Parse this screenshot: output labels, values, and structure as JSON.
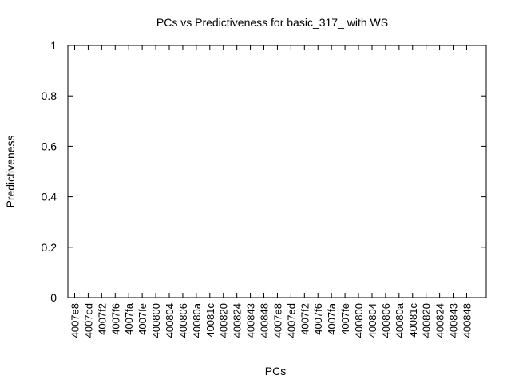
{
  "chart_data": {
    "type": "bar",
    "title": "PCs vs Predictiveness for basic_317_ with WS",
    "xlabel": "PCs",
    "ylabel": "Predictiveness",
    "ylim": [
      0,
      1
    ],
    "yticks": [
      "0",
      "0.2",
      "0.4",
      "0.6",
      "0.8",
      "1"
    ],
    "categories": [
      "4007e8",
      "4007ed",
      "4007f2",
      "4007f6",
      "4007fa",
      "4007fe",
      "400800",
      "400804",
      "400806",
      "40080a",
      "40081c",
      "400820",
      "400824",
      "400843",
      "400848",
      "4007e8",
      "4007ed",
      "4007f2",
      "4007f6",
      "4007fa",
      "4007fe",
      "400800",
      "400804",
      "400806",
      "40080a",
      "40081c",
      "400820",
      "400824",
      "400843",
      "400848"
    ],
    "values": [
      0,
      0,
      0,
      0,
      0,
      0,
      0,
      0,
      0,
      0,
      0,
      0,
      0,
      0,
      0,
      0,
      0,
      0,
      0,
      0,
      0,
      0,
      0,
      0,
      0,
      0,
      0,
      0,
      0,
      0
    ],
    "grid": false,
    "legend": "none"
  }
}
